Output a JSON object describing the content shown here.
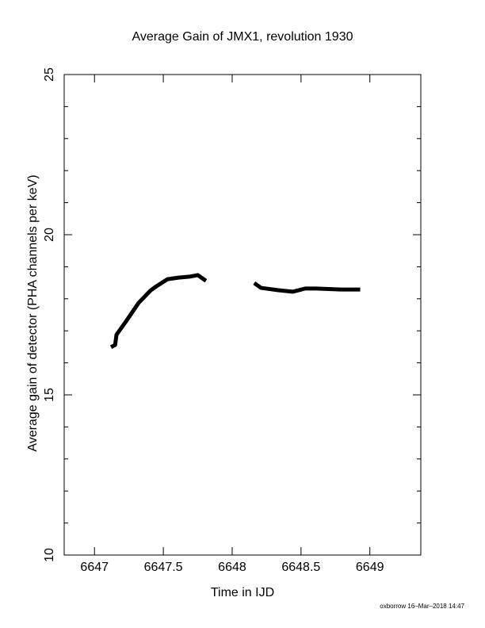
{
  "chart_data": {
    "type": "line",
    "title": "Average Gain of JMX1, revolution 1930",
    "x_label": "Time in IJD",
    "y_label": "Average gain of detector (PHA channels per keV)",
    "footer": "oxborrow 16–Mar–2018 14:47",
    "x": [
      6647.12,
      6647.15,
      6647.16,
      6647.23,
      6647.32,
      6647.41,
      6647.46,
      6647.53,
      6647.61,
      6647.69,
      6647.75,
      6647.81,
      null,
      6648.16,
      6648.21,
      6648.33,
      6648.44,
      6648.53,
      6648.61,
      6648.79,
      6648.93
    ],
    "values": [
      16.49,
      16.56,
      16.88,
      17.3,
      17.87,
      18.27,
      18.42,
      18.61,
      18.66,
      18.69,
      18.74,
      18.56,
      null,
      18.49,
      18.34,
      18.27,
      18.22,
      18.32,
      18.32,
      18.29,
      18.29
    ],
    "color": "#000000",
    "xlim": [
      6646.78,
      6649.37
    ],
    "ylim": [
      10,
      25
    ],
    "xticks": [
      6647,
      6647.5,
      6648,
      6648.5,
      6649
    ],
    "yticks": [
      10,
      15,
      20,
      25
    ],
    "y_minor_ticks": [
      11,
      12,
      13,
      14,
      16,
      17,
      18,
      19,
      21,
      22,
      23,
      24
    ]
  }
}
